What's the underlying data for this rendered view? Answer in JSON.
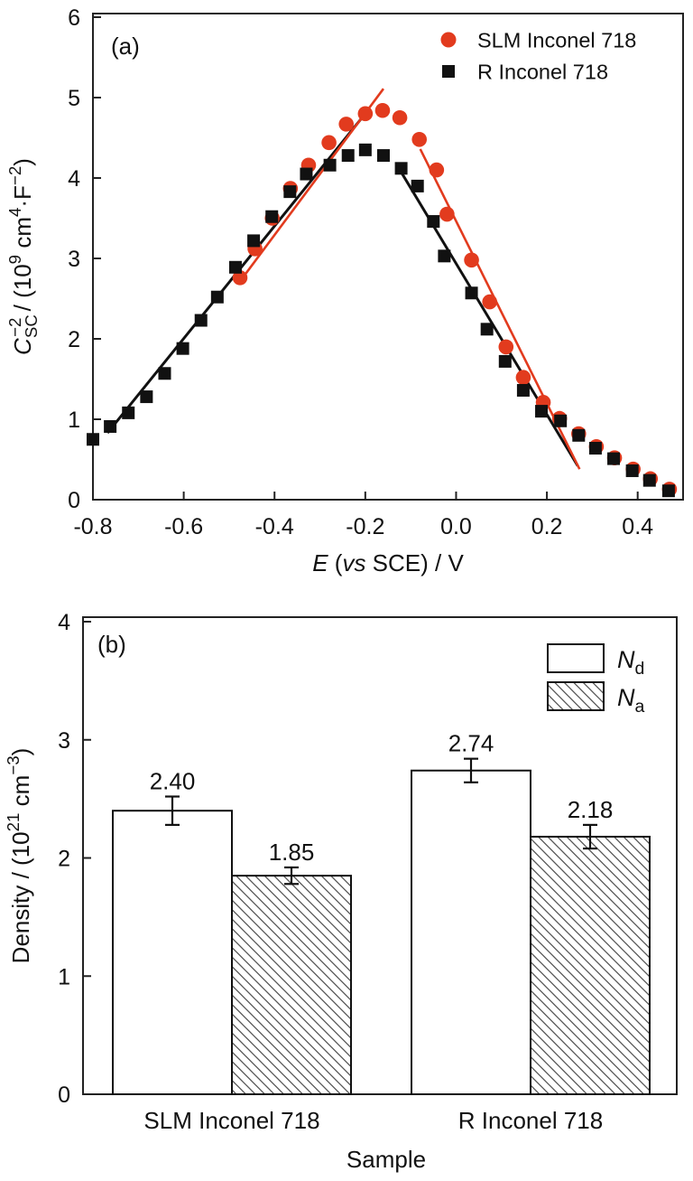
{
  "figure": {
    "background": "#ffffff",
    "accent_red": "#e23b1e",
    "black": "#111111"
  },
  "chart_data": [
    {
      "type": "scatter",
      "panel_label": "(a)",
      "xlabel_segments": [
        {
          "t": "E",
          "i": true
        },
        {
          "t": " ("
        },
        {
          "t": "vs",
          "i": true
        },
        {
          "t": " SCE) / V"
        }
      ],
      "ylabel_segments": [
        {
          "t": "C",
          "i": true
        },
        {
          "t": "SC",
          "p": "sub"
        },
        {
          "t": "−2",
          "p": "sup",
          "back": true
        },
        {
          "t": " / (10"
        },
        {
          "t": "9",
          "p": "sup"
        },
        {
          "t": " cm"
        },
        {
          "t": "4",
          "p": "sup"
        },
        {
          "t": "·F"
        },
        {
          "t": "−2",
          "p": "sup"
        },
        {
          "t": ")"
        }
      ],
      "xlim": [
        -0.8,
        0.5
      ],
      "ylim": [
        0,
        6
      ],
      "x_ticks": [
        {
          "v": -0.8,
          "label": "-0.8"
        },
        {
          "v": -0.6,
          "label": "-0.6"
        },
        {
          "v": -0.4,
          "label": "-0.4"
        },
        {
          "v": -0.2,
          "label": "-0.2"
        },
        {
          "v": 0.0,
          "label": "0.0"
        },
        {
          "v": 0.2,
          "label": "0.2"
        },
        {
          "v": 0.4,
          "label": "0.4"
        }
      ],
      "y_ticks": [
        {
          "v": 0,
          "label": "0"
        },
        {
          "v": 1,
          "label": "1"
        },
        {
          "v": 2,
          "label": "2"
        },
        {
          "v": 3,
          "label": "3"
        },
        {
          "v": 4,
          "label": "4"
        },
        {
          "v": 5,
          "label": "5"
        },
        {
          "v": 6,
          "label": "6"
        }
      ],
      "legend": [
        {
          "label": "SLM Inconel 718",
          "marker": "circle",
          "color": "#e23b1e"
        },
        {
          "label": "R Inconel 718",
          "marker": "square",
          "color": "#111111"
        }
      ],
      "series": [
        {
          "name": "SLM Inconel 718",
          "marker": "circle",
          "color": "#e23b1e",
          "points": [
            [
              -0.476,
              2.76
            ],
            [
              -0.443,
              3.12
            ],
            [
              -0.405,
              3.5
            ],
            [
              -0.365,
              3.87
            ],
            [
              -0.325,
              4.16
            ],
            [
              -0.28,
              4.44
            ],
            [
              -0.242,
              4.67
            ],
            [
              -0.2,
              4.8
            ],
            [
              -0.162,
              4.84
            ],
            [
              -0.124,
              4.75
            ],
            [
              -0.081,
              4.48
            ],
            [
              -0.043,
              4.1
            ],
            [
              -0.02,
              3.55
            ],
            [
              0.034,
              2.98
            ],
            [
              0.074,
              2.46
            ],
            [
              0.11,
              1.9
            ],
            [
              0.148,
              1.52
            ],
            [
              0.192,
              1.21
            ],
            [
              0.228,
              1.01
            ],
            [
              0.27,
              0.82
            ],
            [
              0.309,
              0.66
            ],
            [
              0.349,
              0.52
            ],
            [
              0.39,
              0.38
            ],
            [
              0.428,
              0.26
            ],
            [
              0.47,
              0.13
            ]
          ]
        },
        {
          "name": "R Inconel 718",
          "marker": "square",
          "color": "#111111",
          "points": [
            [
              -0.8,
              0.75
            ],
            [
              -0.762,
              0.91
            ],
            [
              -0.722,
              1.08
            ],
            [
              -0.682,
              1.28
            ],
            [
              -0.642,
              1.57
            ],
            [
              -0.602,
              1.88
            ],
            [
              -0.562,
              2.23
            ],
            [
              -0.526,
              2.52
            ],
            [
              -0.486,
              2.89
            ],
            [
              -0.446,
              3.22
            ],
            [
              -0.406,
              3.52
            ],
            [
              -0.366,
              3.83
            ],
            [
              -0.33,
              4.05
            ],
            [
              -0.278,
              4.16
            ],
            [
              -0.238,
              4.28
            ],
            [
              -0.2,
              4.35
            ],
            [
              -0.16,
              4.28
            ],
            [
              -0.121,
              4.12
            ],
            [
              -0.085,
              3.9
            ],
            [
              -0.05,
              3.46
            ],
            [
              -0.026,
              3.03
            ],
            [
              0.034,
              2.57
            ],
            [
              0.068,
              2.12
            ],
            [
              0.108,
              1.72
            ],
            [
              0.148,
              1.36
            ],
            [
              0.188,
              1.1
            ],
            [
              0.23,
              0.98
            ],
            [
              0.27,
              0.8
            ],
            [
              0.307,
              0.64
            ],
            [
              0.347,
              0.51
            ],
            [
              0.388,
              0.36
            ],
            [
              0.426,
              0.24
            ],
            [
              0.468,
              0.11
            ]
          ]
        }
      ],
      "fit_lines": [
        {
          "color": "#111111",
          "width": 3.0,
          "from": [
            -0.768,
            0.83
          ],
          "to": [
            -0.19,
            4.87
          ]
        },
        {
          "color": "#e23b1e",
          "width": 2.6,
          "from": [
            -0.478,
            2.7
          ],
          "to": [
            -0.16,
            5.11
          ]
        },
        {
          "color": "#111111",
          "width": 3.0,
          "from": [
            -0.126,
            4.12
          ],
          "to": [
            0.268,
            0.42
          ]
        },
        {
          "color": "#e23b1e",
          "width": 2.6,
          "from": [
            -0.079,
            4.36
          ],
          "to": [
            0.272,
            0.38
          ]
        }
      ]
    },
    {
      "type": "bar",
      "panel_label": "(b)",
      "xlabel": "Sample",
      "ylabel_segments": [
        {
          "t": "Density / (10"
        },
        {
          "t": "21",
          "p": "sup"
        },
        {
          "t": " cm"
        },
        {
          "t": "−3",
          "p": "sup"
        },
        {
          "t": ")"
        }
      ],
      "ylim": [
        0,
        4
      ],
      "y_ticks": [
        {
          "v": 0,
          "label": "0"
        },
        {
          "v": 1,
          "label": "1"
        },
        {
          "v": 2,
          "label": "2"
        },
        {
          "v": 3,
          "label": "3"
        },
        {
          "v": 4,
          "label": "4"
        }
      ],
      "categories": [
        "SLM Inconel 718",
        "R Inconel 718"
      ],
      "legend": [
        {
          "fill": "white",
          "label_segments": [
            {
              "t": "N",
              "i": true
            },
            {
              "t": "d",
              "p": "sub"
            }
          ]
        },
        {
          "fill": "hatch",
          "label_segments": [
            {
              "t": "N",
              "i": true
            },
            {
              "t": "a",
              "p": "sub"
            }
          ]
        }
      ],
      "series": [
        {
          "name": "Nd",
          "fill": "white",
          "values": [
            2.4,
            2.74
          ],
          "errors": [
            0.12,
            0.1
          ],
          "labels": [
            "2.40",
            "2.74"
          ]
        },
        {
          "name": "Na",
          "fill": "hatch",
          "values": [
            1.85,
            2.18
          ],
          "errors": [
            0.07,
            0.1
          ],
          "labels": [
            "1.85",
            "2.18"
          ]
        }
      ]
    }
  ]
}
